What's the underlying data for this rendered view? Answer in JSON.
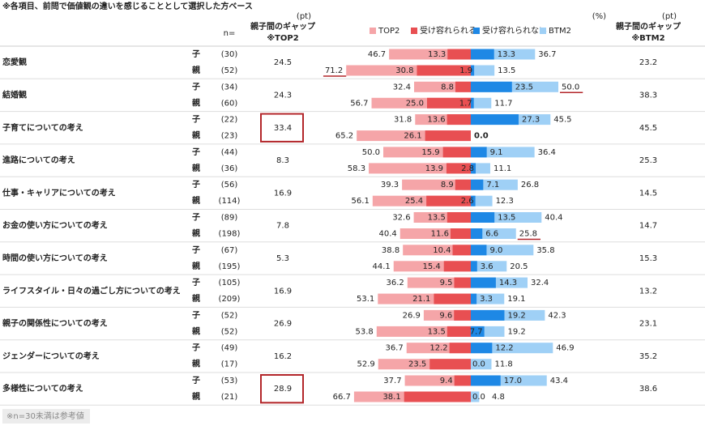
{
  "note": "※各項目、前問で価値観の違いを感じることとして選択した方ベース",
  "footnote": "※n=30未満は参考値",
  "chart_data": {
    "type": "diverging-bar",
    "headers": {
      "n": "n=",
      "gap_unit": "(pt)",
      "gap_label": "親子間のギャップ",
      "gap_top_note": "※TOP2",
      "gap_btm_note": "※BTM2",
      "value_unit": "(%)"
    },
    "series": [
      {
        "name": "TOP2",
        "color": "#f5a5a8"
      },
      {
        "name": "受け容れられる",
        "color": "#e84f52"
      },
      {
        "name": "受け容れられない",
        "color": "#1e88e5"
      },
      {
        "name": "BTM2",
        "color": "#9fd0f6"
      }
    ],
    "items": [
      {
        "label": "恋愛観",
        "gap_top2": 24.5,
        "gap_btm2": 23.2,
        "rows": [
          {
            "group": "子",
            "n": "(30)",
            "values": [
              46.7,
              13.3,
              13.3,
              36.7
            ],
            "value_labels": [
              "46.7",
              "13.3",
              "13.3",
              "36.7"
            ]
          },
          {
            "group": "親",
            "n": "(52)",
            "values": [
              71.2,
              30.8,
              1.9,
              13.5
            ],
            "value_labels": [
              "71.2",
              "30.8",
              "1.9",
              "13.5"
            ],
            "underline": 0
          }
        ]
      },
      {
        "label": "結婚観",
        "gap_top2": 24.3,
        "gap_btm2": 38.3,
        "rows": [
          {
            "group": "子",
            "n": "(34)",
            "values": [
              32.4,
              8.8,
              23.5,
              50.0
            ],
            "value_labels": [
              "32.4",
              "8.8",
              "23.5",
              "50.0"
            ],
            "underline": 3
          },
          {
            "group": "親",
            "n": "(60)",
            "values": [
              56.7,
              25.0,
              1.7,
              11.7
            ],
            "value_labels": [
              "56.7",
              "25.0",
              "1.7",
              "11.7"
            ]
          }
        ]
      },
      {
        "label": "子育てについての考え",
        "gap_top2": 33.4,
        "gap_btm2": 45.5,
        "highlight": true,
        "rows": [
          {
            "group": "子",
            "n": "(22)",
            "values": [
              31.8,
              13.6,
              27.3,
              45.5
            ],
            "value_labels": [
              "31.8",
              "13.6",
              "27.3",
              "45.5"
            ]
          },
          {
            "group": "親",
            "n": "(23)",
            "values": [
              65.2,
              26.1,
              null,
              0.0
            ],
            "value_labels": [
              "65.2",
              "26.1",
              null,
              "0.0"
            ]
          }
        ]
      },
      {
        "label": "進路についての考え",
        "gap_top2": 8.3,
        "gap_btm2": 25.3,
        "rows": [
          {
            "group": "子",
            "n": "(44)",
            "values": [
              50.0,
              15.9,
              9.1,
              36.4
            ],
            "value_labels": [
              "50.0",
              "15.9",
              "9.1",
              "36.4"
            ]
          },
          {
            "group": "親",
            "n": "(36)",
            "values": [
              58.3,
              13.9,
              2.8,
              11.1
            ],
            "value_labels": [
              "58.3",
              "13.9",
              "2.8",
              "11.1"
            ]
          }
        ]
      },
      {
        "label": "仕事・キャリアについての考え",
        "gap_top2": 16.9,
        "gap_btm2": 14.5,
        "rows": [
          {
            "group": "子",
            "n": "(56)",
            "values": [
              39.3,
              8.9,
              7.1,
              26.8
            ],
            "value_labels": [
              "39.3",
              "8.9",
              "7.1",
              "26.8"
            ]
          },
          {
            "group": "親",
            "n": "(114)",
            "values": [
              56.1,
              25.4,
              2.6,
              12.3
            ],
            "value_labels": [
              "56.1",
              "25.4",
              "2.6",
              "12.3"
            ]
          }
        ]
      },
      {
        "label": "お金の使い方についての考え",
        "gap_top2": 7.8,
        "gap_btm2": 14.7,
        "rows": [
          {
            "group": "子",
            "n": "(89)",
            "values": [
              32.6,
              13.5,
              13.5,
              40.4
            ],
            "value_labels": [
              "32.6",
              "13.5",
              "13.5",
              "40.4"
            ]
          },
          {
            "group": "親",
            "n": "(198)",
            "values": [
              40.4,
              11.6,
              6.6,
              25.8
            ],
            "value_labels": [
              "40.4",
              "11.6",
              "6.6",
              "25.8"
            ],
            "underline": 3
          }
        ]
      },
      {
        "label": "時間の使い方についての考え",
        "gap_top2": 5.3,
        "gap_btm2": 15.3,
        "rows": [
          {
            "group": "子",
            "n": "(67)",
            "values": [
              38.8,
              10.4,
              9.0,
              35.8
            ],
            "value_labels": [
              "38.8",
              "10.4",
              "9.0",
              "35.8"
            ]
          },
          {
            "group": "親",
            "n": "(195)",
            "values": [
              44.1,
              15.4,
              3.6,
              20.5
            ],
            "value_labels": [
              "44.1",
              "15.4",
              "3.6",
              "20.5"
            ]
          }
        ]
      },
      {
        "label": "ライフスタイル・日々の過ごし方についての考え",
        "gap_top2": 16.9,
        "gap_btm2": 13.2,
        "rows": [
          {
            "group": "子",
            "n": "(105)",
            "values": [
              36.2,
              9.5,
              14.3,
              32.4
            ],
            "value_labels": [
              "36.2",
              "9.5",
              "14.3",
              "32.4"
            ]
          },
          {
            "group": "親",
            "n": "(209)",
            "values": [
              53.1,
              21.1,
              3.3,
              19.1
            ],
            "value_labels": [
              "53.1",
              "21.1",
              "3.3",
              "19.1"
            ]
          }
        ]
      },
      {
        "label": "親子の関係性についての考え",
        "gap_top2": 26.9,
        "gap_btm2": 23.1,
        "rows": [
          {
            "group": "子",
            "n": "(52)",
            "values": [
              26.9,
              9.6,
              19.2,
              42.3
            ],
            "value_labels": [
              "26.9",
              "9.6",
              "19.2",
              "42.3"
            ]
          },
          {
            "group": "親",
            "n": "(52)",
            "values": [
              53.8,
              13.5,
              7.7,
              19.2
            ],
            "value_labels": [
              "53.8",
              "13.5",
              "7.7",
              "19.2"
            ]
          }
        ]
      },
      {
        "label": "ジェンダーについての考え",
        "gap_top2": 16.2,
        "gap_btm2": 35.2,
        "rows": [
          {
            "group": "子",
            "n": "(49)",
            "values": [
              36.7,
              12.2,
              12.2,
              46.9
            ],
            "value_labels": [
              "36.7",
              "12.2",
              "12.2",
              "46.9"
            ]
          },
          {
            "group": "親",
            "n": "(17)",
            "values": [
              52.9,
              23.5,
              0.0,
              11.8
            ],
            "value_labels": [
              "52.9",
              "23.5",
              "0.0",
              "11.8"
            ]
          }
        ]
      },
      {
        "label": "多様性についての考え",
        "gap_top2": 28.9,
        "gap_btm2": 38.6,
        "highlight": true,
        "rows": [
          {
            "group": "子",
            "n": "(53)",
            "values": [
              37.7,
              9.4,
              17.0,
              43.4
            ],
            "value_labels": [
              "37.7",
              "9.4",
              "17.0",
              "43.4"
            ]
          },
          {
            "group": "親",
            "n": "(21)",
            "values": [
              66.7,
              38.1,
              0.0,
              4.8
            ],
            "value_labels": [
              "66.7",
              "38.1",
              "0.0",
              "4.8"
            ]
          }
        ]
      }
    ]
  }
}
